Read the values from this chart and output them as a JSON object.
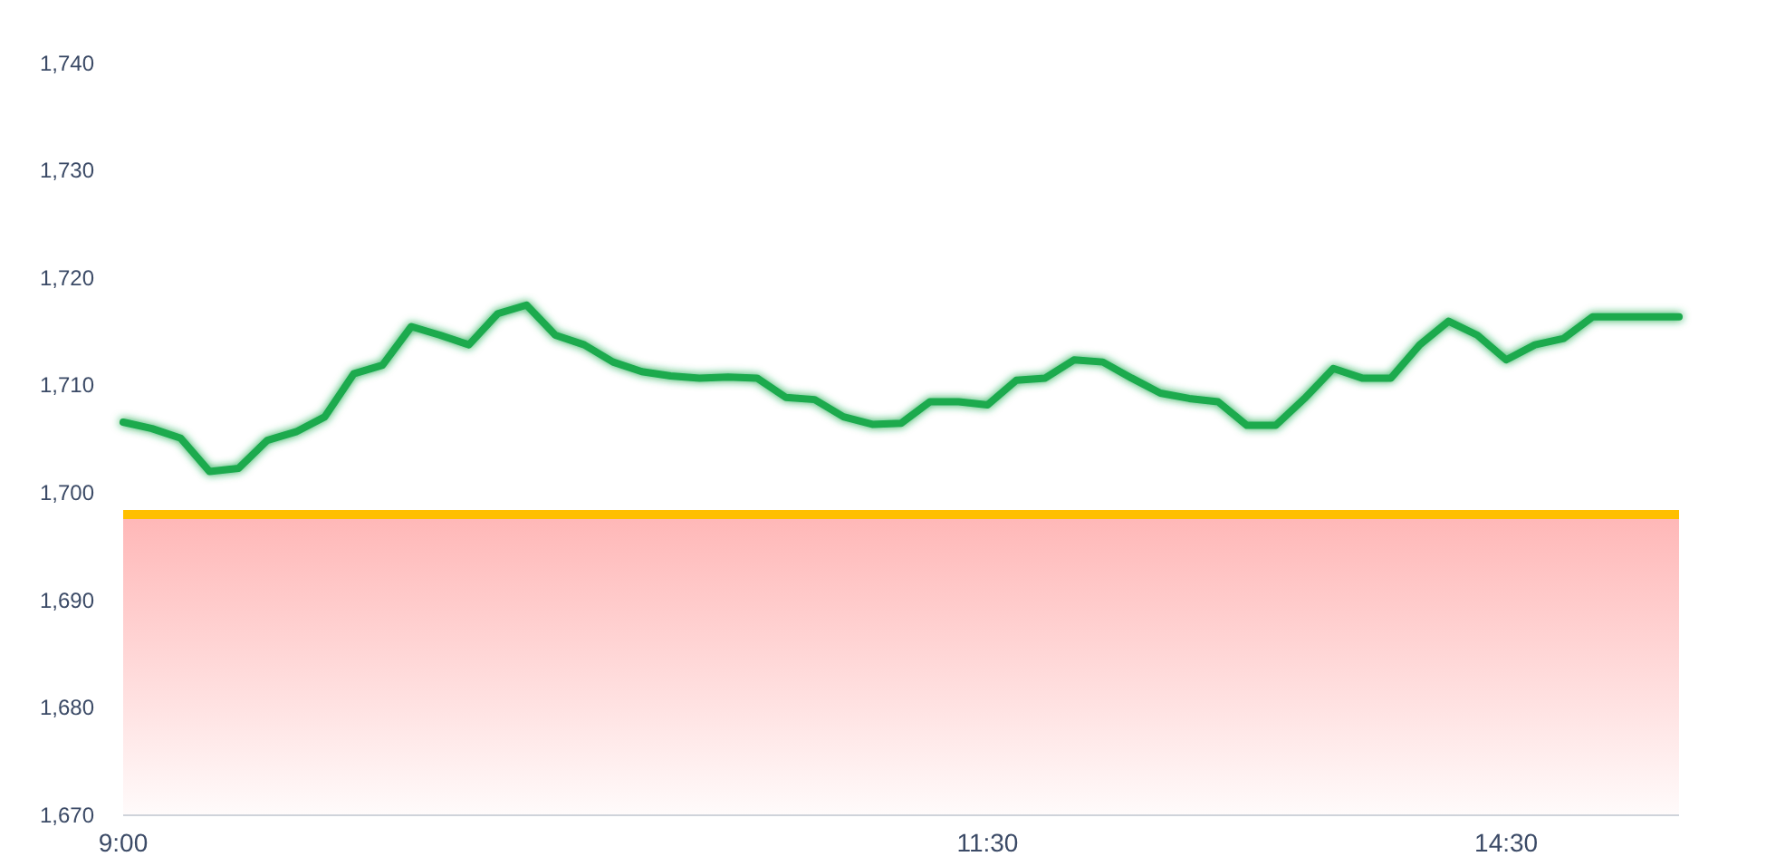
{
  "chart_data": {
    "type": "line",
    "categories": [
      "9:00",
      null,
      null,
      null,
      null,
      null,
      null,
      null,
      null,
      null,
      null,
      null,
      null,
      null,
      null,
      null,
      null,
      null,
      null,
      null,
      null,
      null,
      null,
      null,
      null,
      null,
      null,
      null,
      null,
      null,
      "11:30",
      null,
      null,
      null,
      null,
      null,
      null,
      null,
      null,
      null,
      null,
      null,
      null,
      null,
      null,
      null,
      null,
      null,
      "14:30",
      null,
      null,
      null,
      null,
      null,
      null
    ],
    "series": [
      {
        "color": "#1aaa4e",
        "values": [
          1706.6,
          1706.0,
          1705.1,
          1702.0,
          1702.3,
          1704.9,
          1705.7,
          1707.1,
          1711.1,
          1711.9,
          1715.5,
          1714.7,
          1713.8,
          1716.7,
          1717.5,
          1714.7,
          1713.8,
          1712.2,
          1711.3,
          1710.9,
          1710.7,
          1710.8,
          1710.7,
          1708.9,
          1708.7,
          1707.1,
          1706.4,
          1706.5,
          1708.5,
          1708.5,
          1708.2,
          1710.5,
          1710.7,
          1712.4,
          1712.2,
          1710.7,
          1709.3,
          1708.8,
          1708.5,
          1706.3,
          1706.3,
          1708.8,
          1711.6,
          1710.7,
          1710.7,
          1713.8,
          1716.0,
          1714.7,
          1712.4,
          1713.8,
          1714.4,
          1716.4,
          1716.4,
          1716.4,
          1716.4
        ]
      }
    ],
    "ylim": [
      1670,
      1740
    ],
    "yticks": [
      {
        "value": 1670,
        "label": "1,670"
      },
      {
        "value": 1680,
        "label": "1,680"
      },
      {
        "value": 1690,
        "label": "1,690"
      },
      {
        "value": 1700,
        "label": "1,700"
      },
      {
        "value": 1710,
        "label": "1,710"
      },
      {
        "value": 1720,
        "label": "1,720"
      },
      {
        "value": 1730,
        "label": "1,730"
      },
      {
        "value": 1740,
        "label": "1,740"
      }
    ],
    "bands": [
      {
        "axis": "y",
        "from": 1670,
        "to": 1698,
        "color": "#ffaaaa"
      }
    ],
    "ref_lines": [
      {
        "axis": "y",
        "value": 1698,
        "color": "#ffbf00"
      }
    ],
    "grid": false,
    "marker": "none",
    "line_style": "solid"
  }
}
